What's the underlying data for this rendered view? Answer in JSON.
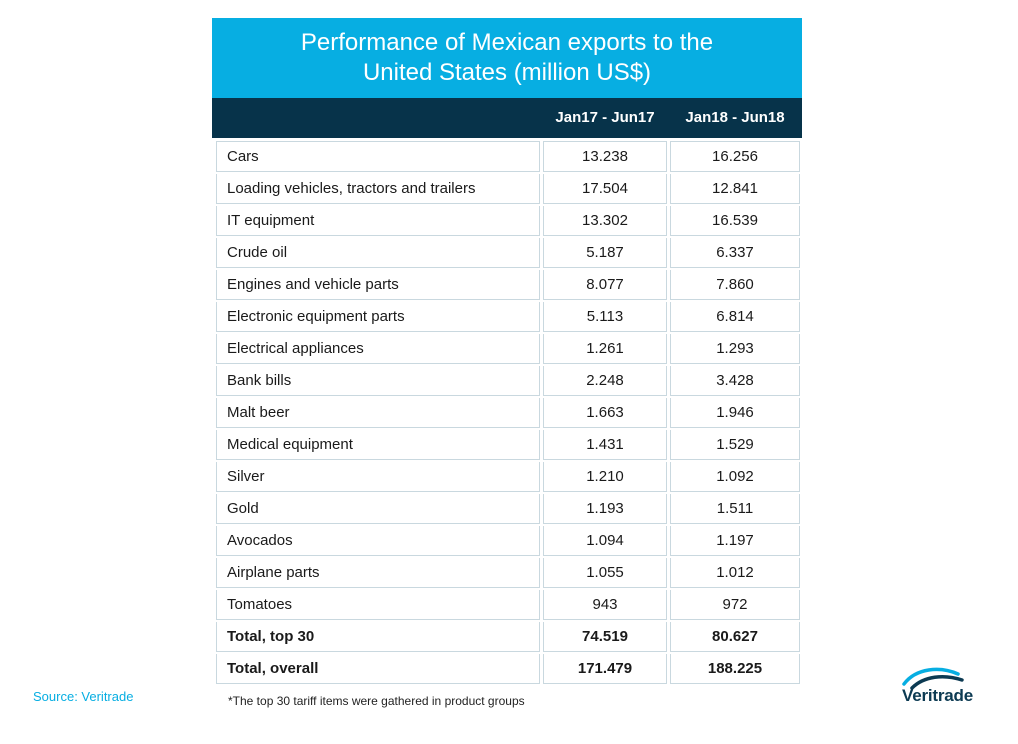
{
  "chart_data": {
    "type": "table",
    "title": "Performance of Mexican exports to the United States (million US$)",
    "columns": [
      "",
      "Jan17 - Jun17",
      "Jan18 - Jun18"
    ],
    "rows": [
      {
        "label": "Cars",
        "v1": "13.238",
        "v2": "16.256",
        "bold": false
      },
      {
        "label": "Loading vehicles, tractors and trailers",
        "v1": "17.504",
        "v2": "12.841",
        "bold": false
      },
      {
        "label": "IT equipment",
        "v1": "13.302",
        "v2": "16.539",
        "bold": false
      },
      {
        "label": "Crude oil",
        "v1": "5.187",
        "v2": "6.337",
        "bold": false
      },
      {
        "label": "Engines and vehicle parts",
        "v1": "8.077",
        "v2": "7.860",
        "bold": false
      },
      {
        "label": "Electronic equipment parts",
        "v1": "5.113",
        "v2": "6.814",
        "bold": false
      },
      {
        "label": "Electrical appliances",
        "v1": "1.261",
        "v2": "1.293",
        "bold": false
      },
      {
        "label": "Bank bills",
        "v1": "2.248",
        "v2": "3.428",
        "bold": false
      },
      {
        "label": "Malt beer",
        "v1": "1.663",
        "v2": "1.946",
        "bold": false
      },
      {
        "label": "Medical equipment",
        "v1": "1.431",
        "v2": "1.529",
        "bold": false
      },
      {
        "label": "Silver",
        "v1": "1.210",
        "v2": "1.092",
        "bold": false
      },
      {
        "label": "Gold",
        "v1": "1.193",
        "v2": "1.511",
        "bold": false
      },
      {
        "label": "Avocados",
        "v1": "1.094",
        "v2": "1.197",
        "bold": false
      },
      {
        "label": "Airplane parts",
        "v1": "1.055",
        "v2": "1.012",
        "bold": false
      },
      {
        "label": "Tomatoes",
        "v1": "943",
        "v2": "972",
        "bold": false
      },
      {
        "label": "Total, top 30",
        "v1": "74.519",
        "v2": "80.627",
        "bold": true
      },
      {
        "label": "Total, overall",
        "v1": "171.479",
        "v2": "188.225",
        "bold": true
      }
    ]
  },
  "header": {
    "title_line1": "Performance of Mexican exports to the",
    "title_line2": "United States (million US$)",
    "col1": "Jan17 - Jun17",
    "col2": "Jan18 - Jun18"
  },
  "footer": {
    "source": "Source: Veritrade",
    "footnote": "*The top 30 tariff items were gathered in product groups",
    "logo_text": "Veritrade"
  },
  "colors": {
    "title_bg": "#07aee2",
    "header_bg": "#07334a",
    "grid": "#c9d8df",
    "source_text": "#07aee2",
    "logo_text": "#0c3a52"
  },
  "icons": {
    "logo": "veritrade-swoosh-logo"
  }
}
